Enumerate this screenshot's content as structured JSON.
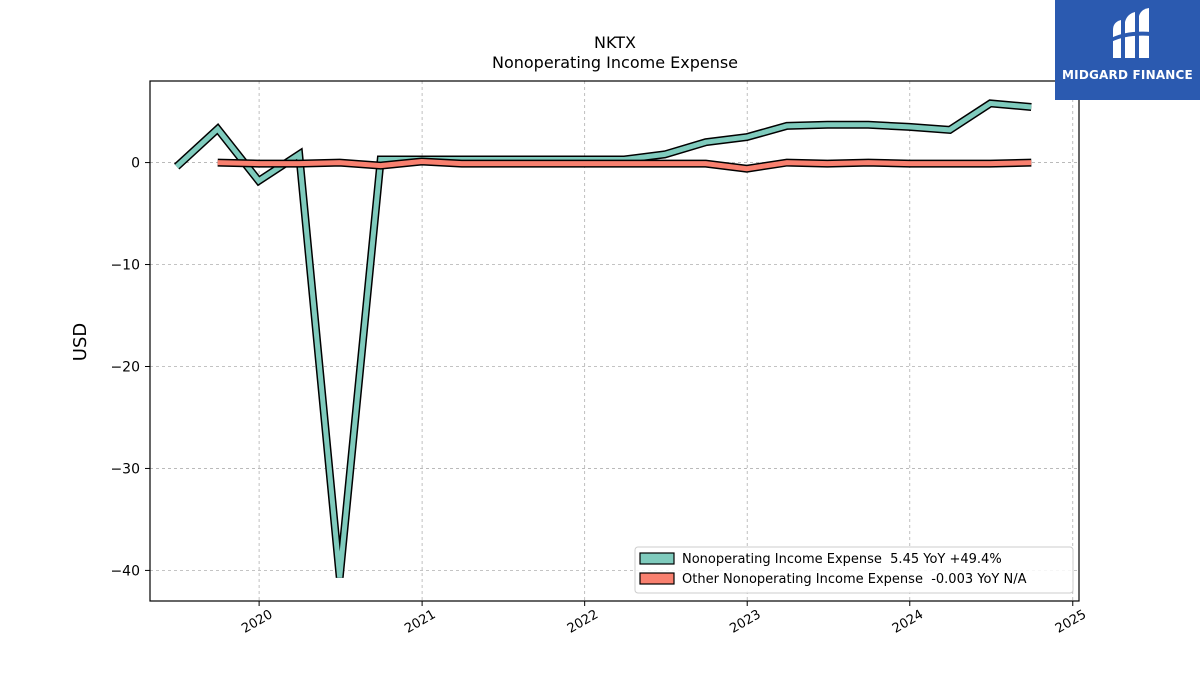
{
  "brand": {
    "name": "MIDGARD FINANCE",
    "icon": "midgard-logo-icon",
    "color": "#2b5ab0"
  },
  "chart_data": {
    "type": "line",
    "title": "NKTX",
    "subtitle": "Nonoperating Income Expense",
    "xlabel": "",
    "ylabel": "USD",
    "xlim": [
      "2019-05-01",
      "2025-01-15"
    ],
    "ylim": [
      -43,
      8
    ],
    "grid": true,
    "legend_position": "bottom-right",
    "x_ticks": [
      "2020",
      "2021",
      "2022",
      "2023",
      "2024",
      "2025"
    ],
    "y_ticks": [
      0,
      -10,
      -20,
      -30,
      -40
    ],
    "series": [
      {
        "name": "Nonoperating Income Expense  5.45 YoY +49.4%",
        "color": "#7fcbbd",
        "x": [
          "2019-06-30",
          "2019-09-30",
          "2019-12-31",
          "2020-03-31",
          "2020-06-30",
          "2020-09-30",
          "2020-12-31",
          "2021-03-31",
          "2021-06-30",
          "2021-09-30",
          "2021-12-31",
          "2022-03-31",
          "2022-06-30",
          "2022-09-30",
          "2022-12-31",
          "2023-03-31",
          "2023-06-30",
          "2023-09-30",
          "2023-12-31",
          "2024-03-31",
          "2024-06-30",
          "2024-09-30"
        ],
        "values": [
          -0.4,
          3.3,
          -1.8,
          0.8,
          -40.7,
          0.3,
          0.3,
          0.3,
          0.3,
          0.3,
          0.3,
          0.3,
          0.8,
          2.0,
          2.5,
          3.6,
          3.7,
          3.7,
          3.5,
          3.2,
          5.8,
          5.45
        ]
      },
      {
        "name": "Other Nonoperating Income Expense  -0.003 YoY N/A",
        "color": "#f8806f",
        "x": [
          "2019-09-30",
          "2019-12-31",
          "2020-03-31",
          "2020-06-30",
          "2020-09-30",
          "2020-12-31",
          "2021-03-31",
          "2021-06-30",
          "2021-09-30",
          "2021-12-31",
          "2022-03-31",
          "2022-06-30",
          "2022-09-30",
          "2022-12-31",
          "2023-03-31",
          "2023-06-30",
          "2023-09-30",
          "2023-12-31",
          "2024-03-31",
          "2024-06-30",
          "2024-09-30"
        ],
        "values": [
          0.0,
          -0.1,
          -0.1,
          0.0,
          -0.3,
          0.1,
          -0.1,
          -0.1,
          -0.1,
          -0.1,
          -0.1,
          -0.1,
          -0.1,
          -0.6,
          0.0,
          -0.1,
          0.0,
          -0.1,
          -0.1,
          -0.1,
          -0.003
        ]
      }
    ]
  }
}
